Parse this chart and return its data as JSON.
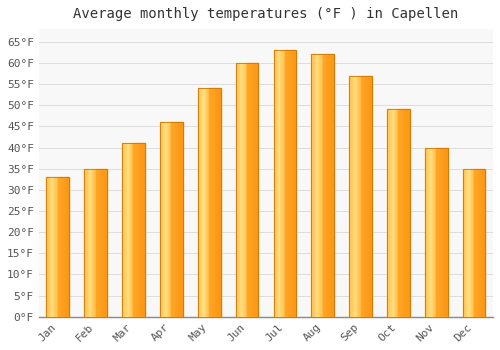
{
  "title": "Average monthly temperatures (°F ) in Capellen",
  "months": [
    "Jan",
    "Feb",
    "Mar",
    "Apr",
    "May",
    "Jun",
    "Jul",
    "Aug",
    "Sep",
    "Oct",
    "Nov",
    "Dec"
  ],
  "values": [
    33,
    35,
    41,
    46,
    54,
    60,
    63,
    62,
    57,
    49,
    40,
    35
  ],
  "bar_color_main": "#FFA726",
  "bar_color_edge": "#E65100",
  "bar_color_highlight": "#FFE082",
  "ylim": [
    0,
    68
  ],
  "yticks": [
    0,
    5,
    10,
    15,
    20,
    25,
    30,
    35,
    40,
    45,
    50,
    55,
    60,
    65
  ],
  "ytick_labels": [
    "0°F",
    "5°F",
    "10°F",
    "15°F",
    "20°F",
    "25°F",
    "30°F",
    "35°F",
    "40°F",
    "45°F",
    "50°F",
    "55°F",
    "60°F",
    "65°F"
  ],
  "background_color": "#ffffff",
  "plot_bg_color": "#f8f8f8",
  "grid_color": "#dddddd",
  "title_fontsize": 10,
  "tick_fontsize": 8,
  "tick_color": "#555555",
  "font_family": "monospace",
  "bar_width": 0.6
}
